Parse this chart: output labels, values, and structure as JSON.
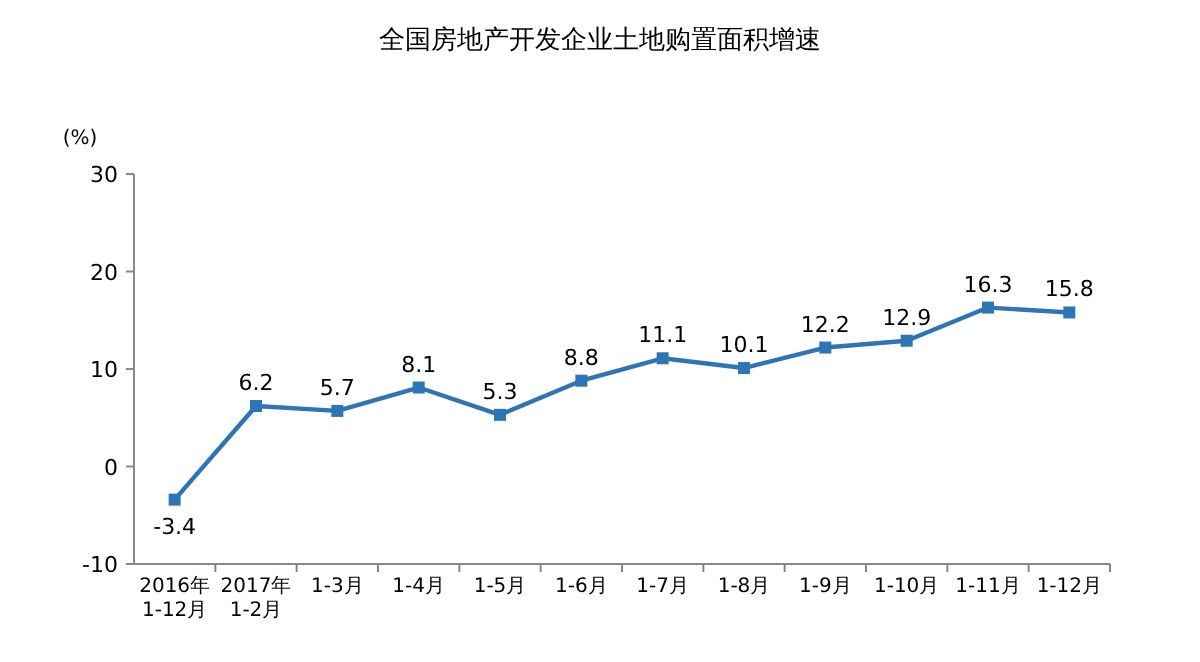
{
  "chart_data": {
    "type": "line",
    "title": "全国房地产开发企业土地购置面积增速",
    "ylabel": "(%)",
    "categories": [
      "2016年\n1-12月",
      "2017年\n1-2月",
      "1-3月",
      "1-4月",
      "1-5月",
      "1-6月",
      "1-7月",
      "1-8月",
      "1-9月",
      "1-10月",
      "1-11月",
      "1-12月"
    ],
    "series": [
      {
        "color": "#2e75b6",
        "values": [
          -3.4,
          6.2,
          5.7,
          8.1,
          5.3,
          8.8,
          11.1,
          10.1,
          12.2,
          12.9,
          16.3,
          15.8
        ]
      }
    ],
    "ylim": [
      -10,
      30
    ],
    "yticks": [
      -10,
      0,
      10,
      20,
      30
    ],
    "marker": "square",
    "data_labels": true
  }
}
